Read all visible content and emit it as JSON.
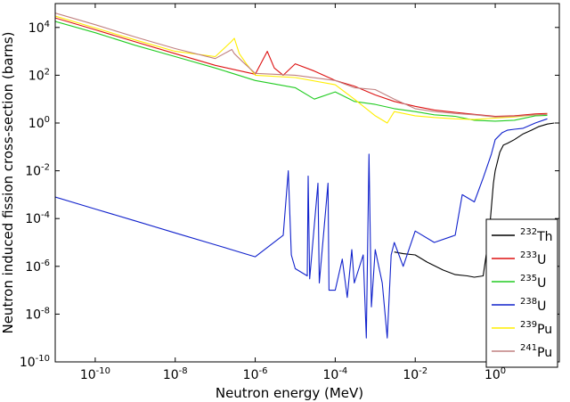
{
  "chart_data": {
    "type": "line",
    "xlabel": "Neutron energy (MeV)",
    "ylabel": "Neutron induced fission cross-section (barns)",
    "xscale": "log",
    "yscale": "log",
    "xlim": [
      1e-11,
      40
    ],
    "ylim": [
      1e-10,
      100000.0
    ],
    "x_ticks": [
      {
        "value": 1e-10,
        "base": "10",
        "exp": "-10"
      },
      {
        "value": 1e-08,
        "base": "10",
        "exp": "-8"
      },
      {
        "value": 1e-06,
        "base": "10",
        "exp": "-6"
      },
      {
        "value": 0.0001,
        "base": "10",
        "exp": "-4"
      },
      {
        "value": 0.01,
        "base": "10",
        "exp": "-2"
      },
      {
        "value": 1,
        "base": "10",
        "exp": "0"
      }
    ],
    "y_ticks": [
      {
        "value": 1e-10,
        "base": "10",
        "exp": "-10"
      },
      {
        "value": 1e-08,
        "base": "10",
        "exp": "-8"
      },
      {
        "value": 1e-06,
        "base": "10",
        "exp": "-6"
      },
      {
        "value": 0.0001,
        "base": "10",
        "exp": "-4"
      },
      {
        "value": 0.01,
        "base": "10",
        "exp": "-2"
      },
      {
        "value": 1,
        "base": "10",
        "exp": "0"
      },
      {
        "value": 100,
        "base": "10",
        "exp": "2"
      },
      {
        "value": 10000,
        "base": "10",
        "exp": "4"
      }
    ],
    "grid": false,
    "legend_position": "bottom-right",
    "series": [
      {
        "name_sup": "232",
        "name_base": "Th",
        "color": "#000000",
        "points": [
          [
            0.003,
            4e-06
          ],
          [
            0.005,
            3.4e-06
          ],
          [
            0.01,
            3e-06
          ],
          [
            0.02,
            1.5e-06
          ],
          [
            0.05,
            7e-07
          ],
          [
            0.1,
            4.5e-07
          ],
          [
            0.2,
            4e-07
          ],
          [
            0.3,
            3.5e-07
          ],
          [
            0.5,
            4e-07
          ],
          [
            0.7,
            2e-05
          ],
          [
            0.9,
            0.003
          ],
          [
            1.0,
            0.01
          ],
          [
            1.3,
            0.06
          ],
          [
            1.6,
            0.12
          ],
          [
            2,
            0.14
          ],
          [
            3,
            0.2
          ],
          [
            5,
            0.35
          ],
          [
            8,
            0.5
          ],
          [
            12,
            0.7
          ],
          [
            20,
            0.9
          ],
          [
            30,
            1.0
          ]
        ]
      },
      {
        "name_sup": "233",
        "name_base": "U",
        "color": "#dd1111",
        "points": [
          [
            1e-11,
            25000
          ],
          [
            1e-10,
            8000
          ],
          [
            1e-09,
            2500
          ],
          [
            1e-08,
            800
          ],
          [
            1e-07,
            260
          ],
          [
            1e-06,
            110
          ],
          [
            2e-06,
            1000
          ],
          [
            3e-06,
            200
          ],
          [
            5e-06,
            100
          ],
          [
            1e-05,
            300
          ],
          [
            3e-05,
            150
          ],
          [
            0.0001,
            60
          ],
          [
            0.0003,
            35
          ],
          [
            0.001,
            15
          ],
          [
            0.003,
            8
          ],
          [
            0.01,
            5
          ],
          [
            0.03,
            3.5
          ],
          [
            0.1,
            2.8
          ],
          [
            0.3,
            2.3
          ],
          [
            1,
            1.9
          ],
          [
            3,
            2.0
          ],
          [
            10,
            2.4
          ],
          [
            20,
            2.5
          ]
        ]
      },
      {
        "name_sup": "235",
        "name_base": "U",
        "color": "#22cc22",
        "points": [
          [
            1e-11,
            18000
          ],
          [
            1e-10,
            6000
          ],
          [
            1e-09,
            1800
          ],
          [
            1e-08,
            600
          ],
          [
            1e-07,
            200
          ],
          [
            1e-06,
            60
          ],
          [
            1e-05,
            30
          ],
          [
            3e-05,
            10
          ],
          [
            0.0001,
            20
          ],
          [
            0.0003,
            8
          ],
          [
            0.001,
            6
          ],
          [
            0.003,
            4
          ],
          [
            0.01,
            3
          ],
          [
            0.03,
            2.2
          ],
          [
            0.1,
            1.9
          ],
          [
            0.3,
            1.3
          ],
          [
            1,
            1.2
          ],
          [
            3,
            1.3
          ],
          [
            10,
            2.0
          ],
          [
            20,
            2.1
          ]
        ]
      },
      {
        "name_sup": "238",
        "name_base": "U",
        "color": "#1122cc",
        "points": [
          [
            1e-11,
            0.0008
          ],
          [
            1e-10,
            0.00025
          ],
          [
            1e-09,
            8e-05
          ],
          [
            1e-08,
            2.5e-05
          ],
          [
            1e-07,
            8e-06
          ],
          [
            1e-06,
            2.5e-06
          ],
          [
            5e-06,
            2e-05
          ],
          [
            6.7e-06,
            0.01
          ],
          [
            8e-06,
            3e-06
          ],
          [
            1e-05,
            8e-07
          ],
          [
            2e-05,
            4e-07
          ],
          [
            2.1e-05,
            0.006
          ],
          [
            2.3e-05,
            3e-07
          ],
          [
            3.7e-05,
            0.003
          ],
          [
            4e-05,
            2e-07
          ],
          [
            6.6e-05,
            0.003
          ],
          [
            7e-05,
            1e-07
          ],
          [
            0.0001,
            1e-07
          ],
          [
            0.00015,
            2e-06
          ],
          [
            0.0002,
            5e-08
          ],
          [
            0.00026,
            5e-06
          ],
          [
            0.0003,
            2e-07
          ],
          [
            0.0005,
            3e-06
          ],
          [
            0.0006,
            1e-09
          ],
          [
            0.0007,
            0.05
          ],
          [
            0.0008,
            2e-08
          ],
          [
            0.001,
            5e-06
          ],
          [
            0.0015,
            2e-07
          ],
          [
            0.002,
            1e-09
          ],
          [
            0.0025,
            3e-06
          ],
          [
            0.003,
            1e-05
          ],
          [
            0.005,
            1e-06
          ],
          [
            0.01,
            3e-05
          ],
          [
            0.03,
            1e-05
          ],
          [
            0.1,
            2e-05
          ],
          [
            0.15,
            0.001
          ],
          [
            0.3,
            0.0005
          ],
          [
            0.5,
            0.005
          ],
          [
            0.8,
            0.05
          ],
          [
            1,
            0.2
          ],
          [
            1.5,
            0.4
          ],
          [
            2,
            0.5
          ],
          [
            3,
            0.55
          ],
          [
            5,
            0.6
          ],
          [
            10,
            1.0
          ],
          [
            20,
            1.5
          ]
        ]
      },
      {
        "name_sup": "239",
        "name_base": "Pu",
        "color": "#ffee00",
        "points": [
          [
            1e-11,
            30000
          ],
          [
            1e-10,
            9500
          ],
          [
            1e-09,
            3000
          ],
          [
            1e-08,
            1000
          ],
          [
            1e-07,
            600
          ],
          [
            2.5e-07,
            2500
          ],
          [
            3e-07,
            3500
          ],
          [
            4e-07,
            800
          ],
          [
            6e-07,
            300
          ],
          [
            1e-06,
            100
          ],
          [
            1e-05,
            80
          ],
          [
            0.0001,
            40
          ],
          [
            0.0003,
            10
          ],
          [
            0.001,
            2
          ],
          [
            0.002,
            1
          ],
          [
            0.003,
            3
          ],
          [
            0.01,
            2
          ],
          [
            0.03,
            1.7
          ],
          [
            0.1,
            1.5
          ],
          [
            0.3,
            1.4
          ],
          [
            1,
            1.6
          ],
          [
            3,
            1.8
          ],
          [
            10,
            2.2
          ],
          [
            20,
            2.3
          ]
        ]
      },
      {
        "name_sup": "241",
        "name_base": "Pu",
        "color": "#c08080",
        "points": [
          [
            1e-11,
            40000
          ],
          [
            1e-10,
            13000
          ],
          [
            1e-09,
            4000
          ],
          [
            1e-08,
            1300
          ],
          [
            1e-07,
            500
          ],
          [
            2.6e-07,
            1200
          ],
          [
            3e-07,
            800
          ],
          [
            5e-07,
            350
          ],
          [
            1e-06,
            120
          ],
          [
            1e-05,
            100
          ],
          [
            0.0001,
            60
          ],
          [
            0.0003,
            30
          ],
          [
            0.001,
            25
          ],
          [
            0.003,
            10
          ],
          [
            0.01,
            4
          ],
          [
            0.03,
            3
          ],
          [
            0.1,
            2.5
          ],
          [
            0.3,
            2.2
          ],
          [
            1,
            1.8
          ],
          [
            3,
            1.9
          ],
          [
            10,
            2.2
          ],
          [
            20,
            2.3
          ]
        ]
      }
    ]
  }
}
